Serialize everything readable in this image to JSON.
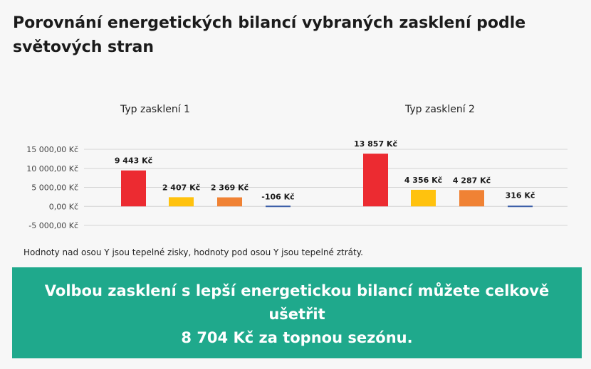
{
  "title": "Porovnání energetických bilancí vybraných zasklení podle světových stran",
  "chart_data": [
    {
      "type": "bar",
      "title": "Typ zasklení 1",
      "values": [
        9443,
        2407,
        2369,
        -106
      ],
      "value_labels": [
        "9 443 Kč",
        "2 407 Kč",
        "2 369 Kč",
        "-106 Kč"
      ],
      "colors": [
        "#ec2b31",
        "#ffc20e",
        "#f08234",
        "#3c5fa8"
      ],
      "ylim": [
        -5000,
        15000
      ],
      "yticks": [
        15000,
        10000,
        5000,
        0,
        -5000
      ],
      "ytick_labels": [
        "15 000,00 Kč",
        "10 000,00 Kč",
        "5 000,00 Kč",
        "0,00 Kč",
        "-5 000,00 Kč"
      ],
      "grid": true
    },
    {
      "type": "bar",
      "title": "Typ zasklení 2",
      "values": [
        13857,
        4356,
        4287,
        316
      ],
      "value_labels": [
        "13 857 Kč",
        "4 356 Kč",
        "4 287 Kč",
        "316 Kč"
      ],
      "colors": [
        "#ec2b31",
        "#ffc20e",
        "#f08234",
        "#3c5fa8"
      ],
      "ylim": [
        -5000,
        15000
      ],
      "grid": true
    }
  ],
  "note": "Hodnoty nad osou Y jsou tepelné zisky, hodnoty pod osou Y jsou tepelné ztráty.",
  "banner": {
    "line1": "Volbou zasklení s lepší energetickou bilancí můžete celkově",
    "line2": "ušetřit",
    "line3": "8 704 Kč za topnou sezónu."
  }
}
